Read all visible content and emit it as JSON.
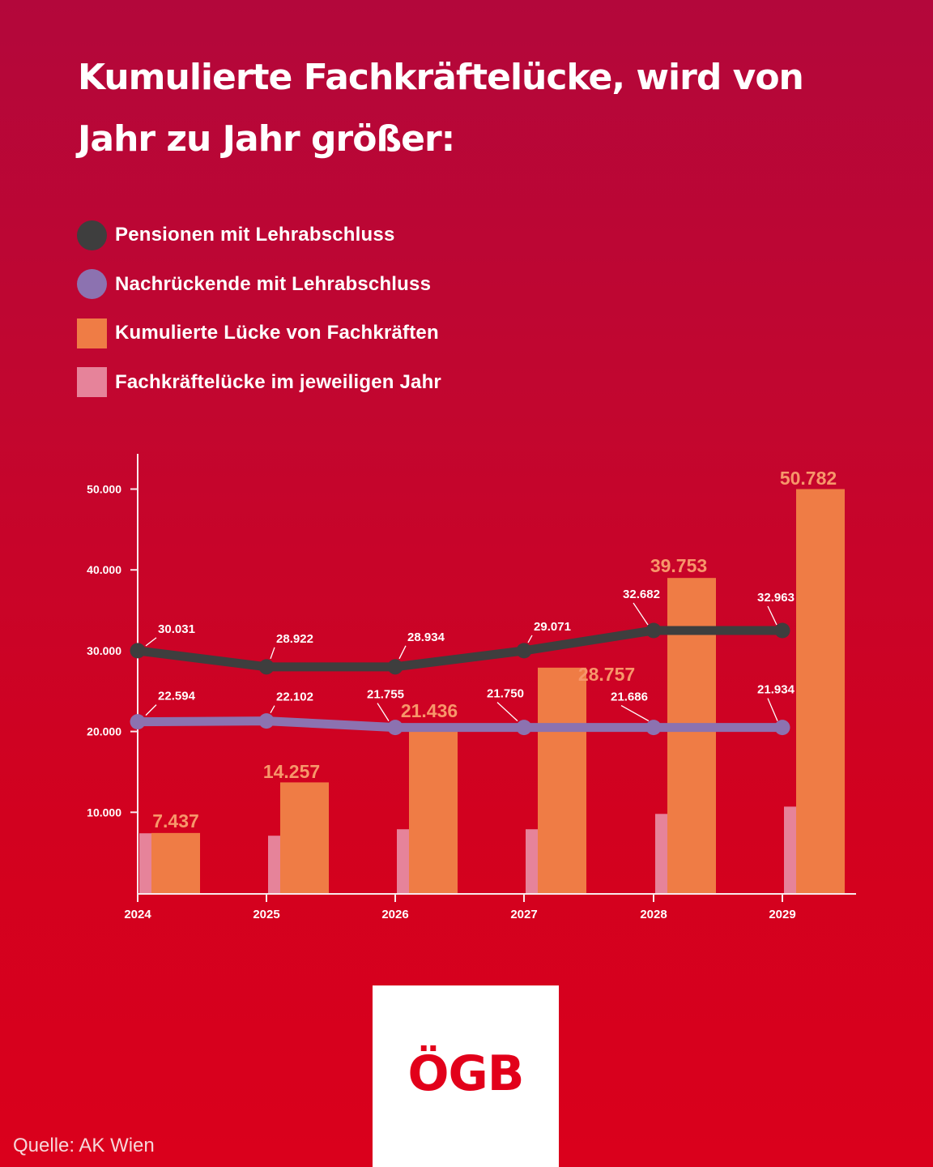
{
  "title": "Kumulierte Fachkräftelücke, wird von Jahr zu Jahr größer:",
  "legend": [
    {
      "label": "Pensionen mit Lehrabschluss",
      "shape": "circle",
      "color": "#3e3e3e"
    },
    {
      "label": "Nachrückende mit Lehrabschluss",
      "shape": "circle",
      "color": "#8c72b0"
    },
    {
      "label": "Kumulierte Lücke von Fachkräften",
      "shape": "square",
      "color": "#ef7c45"
    },
    {
      "label": "Fachkräftelücke im jeweiligen Jahr",
      "shape": "square",
      "color": "#e6839a"
    }
  ],
  "colors": {
    "background_top": "#b3073b",
    "background_bottom": "#da001c",
    "pensions_line": "#3e3e3e",
    "newcomers_line": "#8c72b0",
    "cumulative_bar": "#ef7c45",
    "cumulative_label": "#f7976a",
    "yearly_bar": "#e6839a",
    "axis": "#f8e9ec"
  },
  "chart_data": {
    "type": "bar",
    "title": "Kumulierte Fachkräftelücke, wird von Jahr zu Jahr größer:",
    "xlabel": "",
    "ylabel": "",
    "categories": [
      "2024",
      "2025",
      "2026",
      "2027",
      "2028",
      "2029"
    ],
    "ylim": [
      0,
      55000
    ],
    "yticks": [
      10000,
      20000,
      30000,
      40000,
      50000
    ],
    "ytick_labels": [
      "10.000",
      "20.000",
      "30.000",
      "40.000",
      "50.000"
    ],
    "grid": false,
    "legend_position": "top-left",
    "series": [
      {
        "name": "Pensionen mit Lehrabschluss",
        "type": "line",
        "labels": [
          "30.031",
          "28.922",
          "28.934",
          "29.071",
          "32.682",
          "32.963"
        ],
        "values": [
          30031,
          28922,
          28934,
          29071,
          32682,
          32963
        ],
        "plotted_values": [
          30000,
          28000,
          28000,
          30000,
          32500,
          32500
        ]
      },
      {
        "name": "Nachrückende mit Lehrabschluss",
        "type": "line",
        "labels": [
          "22.594",
          "22.102",
          "21.755",
          "21.750",
          "21.686",
          "21.934"
        ],
        "values": [
          22594,
          22102,
          21755,
          21750,
          21686,
          21934
        ],
        "plotted_values": [
          21200,
          21300,
          20500,
          20500,
          20500,
          20500
        ]
      },
      {
        "name": "Kumulierte Lücke von Fachkräften",
        "type": "bar",
        "labels": [
          "7.437",
          "14.257",
          "21.436",
          "28.757",
          "39.753",
          "50.782"
        ],
        "values": [
          7437,
          14257,
          21436,
          28757,
          39753,
          50782
        ],
        "plotted_values": [
          7437,
          13700,
          20100,
          27900,
          39000,
          50000
        ]
      },
      {
        "name": "Fachkräftelücke im jeweiligen Jahr",
        "type": "bar",
        "labels": [],
        "values": [
          7437,
          6820,
          7179,
          7321,
          10996,
          11029
        ],
        "plotted_values": [
          7400,
          7100,
          7900,
          7900,
          9800,
          10700
        ]
      }
    ]
  },
  "footer": {
    "source": "Quelle: AK Wien",
    "logo_text": "ÖGB"
  }
}
